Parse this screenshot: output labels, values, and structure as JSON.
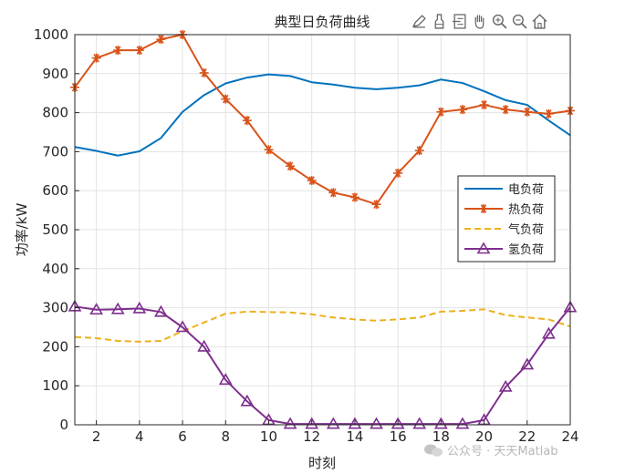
{
  "toolbar": {
    "icons": [
      "edit-icon",
      "brush-icon",
      "datatip-icon",
      "pan-hand-icon",
      "zoom-in-icon",
      "zoom-out-icon",
      "home-icon"
    ]
  },
  "watermark": {
    "text": "公众号 · 天天Matlab",
    "icon": "wechat-icon"
  },
  "chart_data": {
    "type": "line",
    "title": "典型日负荷曲线",
    "xlabel": "时刻",
    "ylabel": "功率/kW",
    "xlim": [
      1,
      24
    ],
    "ylim": [
      0,
      1000
    ],
    "xticks": [
      2,
      4,
      6,
      8,
      10,
      12,
      14,
      16,
      18,
      20,
      22,
      24
    ],
    "yticks": [
      0,
      100,
      200,
      300,
      400,
      500,
      600,
      700,
      800,
      900,
      1000
    ],
    "grid": true,
    "legend_position": "right",
    "x": [
      1,
      2,
      3,
      4,
      5,
      6,
      7,
      8,
      9,
      10,
      11,
      12,
      13,
      14,
      15,
      16,
      17,
      18,
      19,
      20,
      21,
      22,
      23,
      24
    ],
    "series": [
      {
        "name": "电负荷",
        "color": "#0072BD",
        "style": "solid",
        "marker": "none",
        "values": [
          712,
          702,
          690,
          701,
          735,
          802,
          845,
          875,
          890,
          898,
          894,
          878,
          872,
          864,
          860,
          864,
          870,
          885,
          876,
          855,
          832,
          820,
          780,
          742
        ]
      },
      {
        "name": "热负荷",
        "color": "#D95319",
        "style": "solid",
        "marker": "star",
        "values": [
          865,
          940,
          960,
          960,
          988,
          1000,
          902,
          835,
          780,
          705,
          663,
          626,
          595,
          583,
          565,
          645,
          703,
          802,
          808,
          820,
          808,
          802,
          797,
          805
        ]
      },
      {
        "name": "气负荷",
        "color": "#EDB120",
        "style": "dashed",
        "marker": "none",
        "values": [
          225,
          222,
          215,
          213,
          215,
          240,
          262,
          285,
          290,
          289,
          288,
          283,
          275,
          270,
          267,
          270,
          275,
          290,
          292,
          296,
          281,
          275,
          270,
          252
        ]
      },
      {
        "name": "氢负荷",
        "color": "#7E2F8E",
        "style": "solid",
        "marker": "triangle",
        "values": [
          303,
          295,
          296,
          298,
          289,
          250,
          200,
          115,
          60,
          12,
          2,
          2,
          2,
          2,
          2,
          2,
          2,
          2,
          2,
          12,
          97,
          154,
          233,
          301
        ]
      }
    ]
  }
}
